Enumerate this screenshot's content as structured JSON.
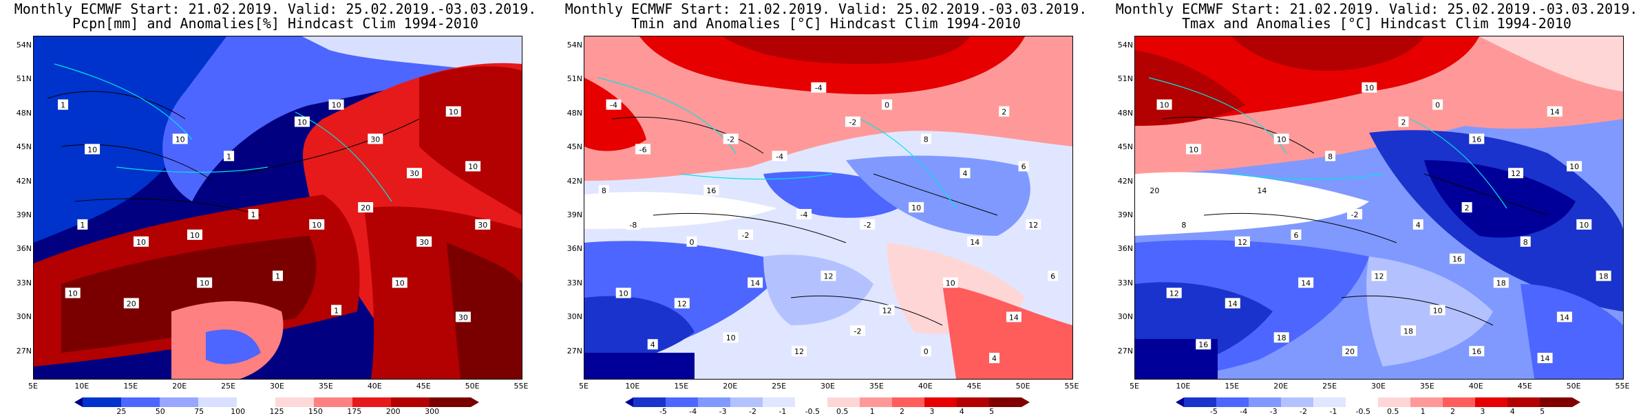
{
  "panels": [
    {
      "id": "pcpn",
      "title_line1": "Monthly ECMWF Start: 21.02.2019. Valid: 25.02.2019.-03.03.2019.",
      "title_line2": "Pcpn[mm] and Anomalies[%] Hindcast Clim 1994-2010",
      "colorbar_labels": [
        "25",
        "50",
        "75",
        "100",
        "125",
        "150",
        "175",
        "200",
        "300"
      ],
      "contour_labels": [
        "1",
        "10",
        "10",
        "1",
        "10",
        "10",
        "30",
        "30",
        "10",
        "10",
        "1",
        "10",
        "10",
        "1",
        "10",
        "20",
        "30",
        "30",
        "10",
        "20",
        "10",
        "1",
        "1",
        "10",
        "30"
      ],
      "colors": [
        "#000080",
        "#0033cc",
        "#4d66ff",
        "#99a6ff",
        "#d9e0ff",
        "#ffd9d9",
        "#ff8080",
        "#e61a1a",
        "#b30000",
        "#7a0000"
      ]
    },
    {
      "id": "tmin",
      "title_line1": "Monthly ECMWF Start: 21.02.2019. Valid: 25.02.2019.-03.03.2019.",
      "title_line2": "Tmin and Anomalies [°C] Hindcast Clim 1994-2010",
      "colorbar_labels": [
        "-5",
        "-4",
        "-3",
        "-2",
        "-1",
        "-0.5",
        "0.5",
        "1",
        "2",
        "3",
        "4",
        "5"
      ],
      "contour_labels": [
        "-4",
        "-6",
        "-2",
        "-4",
        "-2",
        "0",
        "8",
        "4",
        "2",
        "6",
        "-8",
        "0",
        "-2",
        "-4",
        "-2",
        "10",
        "14",
        "12",
        "10",
        "12",
        "14",
        "12",
        "12",
        "10",
        "14",
        "4",
        "10",
        "12",
        "-2",
        "0",
        "4",
        "6",
        "8",
        "16",
        "-4"
      ],
      "colors": [
        "#000099",
        "#1a33cc",
        "#4d66ff",
        "#8099ff",
        "#b3c2ff",
        "#e0e6ff",
        "#ffffff",
        "#ffd6d6",
        "#ff9999",
        "#ff5c5c",
        "#e60000",
        "#b30000",
        "#800000"
      ]
    },
    {
      "id": "tmax",
      "title_line1": "Monthly ECMWF Start: 21.02.2019. Valid: 25.02.2019.-03.03.2019.",
      "title_line2": "Tmax and Anomalies [°C] Hindcast Clim 1994-2010",
      "colorbar_labels": [
        "-5",
        "-4",
        "-3",
        "-2",
        "-1",
        "-0.5",
        "0.5",
        "1",
        "2",
        "3",
        "4",
        "5"
      ],
      "contour_labels": [
        "10",
        "10",
        "10",
        "8",
        "2",
        "0",
        "16",
        "12",
        "14",
        "10",
        "8",
        "12",
        "6",
        "-2",
        "4",
        "2",
        "8",
        "10",
        "12",
        "14",
        "14",
        "12",
        "10",
        "18",
        "14",
        "16",
        "18",
        "20",
        "18",
        "16",
        "14",
        "18",
        "20",
        "14",
        "10",
        "16"
      ],
      "colors": [
        "#000099",
        "#1a33cc",
        "#4d66ff",
        "#8099ff",
        "#b3c2ff",
        "#e0e6ff",
        "#ffffff",
        "#ffd6d6",
        "#ff9999",
        "#ff5c5c",
        "#e60000",
        "#b30000",
        "#800000"
      ]
    }
  ],
  "lat_labels": [
    "54N",
    "51N",
    "48N",
    "45N",
    "42N",
    "39N",
    "36N",
    "33N",
    "30N",
    "27N"
  ],
  "lon_labels": [
    "5E",
    "10E",
    "15E",
    "20E",
    "25E",
    "30E",
    "35E",
    "40E",
    "45E",
    "50E",
    "55E"
  ]
}
